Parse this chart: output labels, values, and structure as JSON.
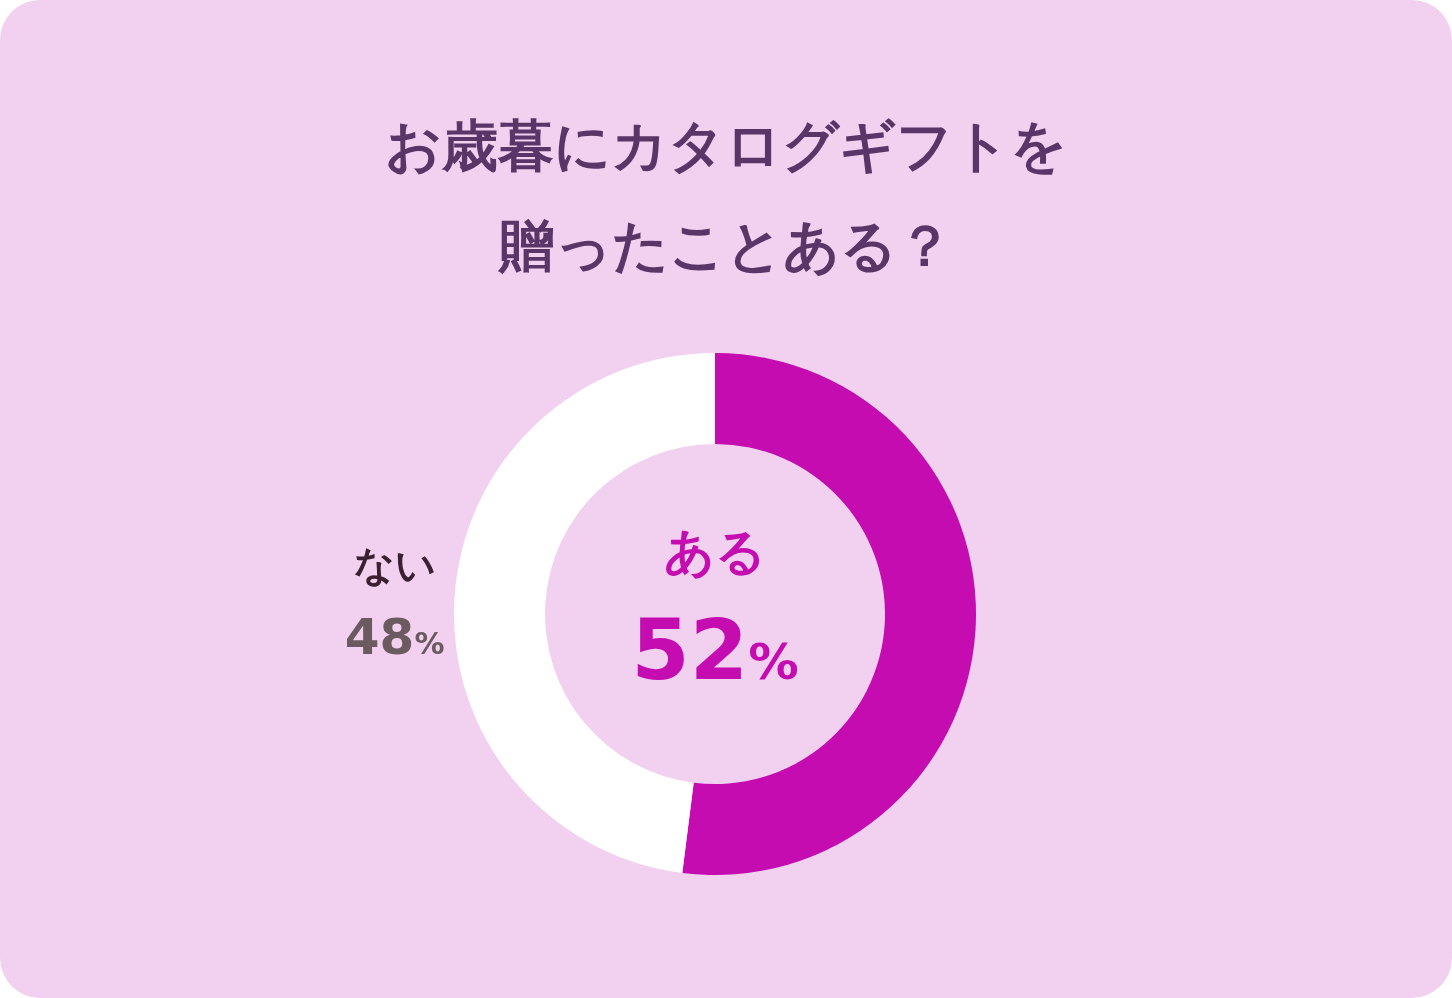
{
  "chart_data": {
    "type": "donut",
    "title": "お歳暮にカタログギフトを贈ったことある？",
    "categories": [
      "ある",
      "ない"
    ],
    "values": [
      52,
      48
    ],
    "colors": [
      "#c40cb0",
      "#ffffff"
    ],
    "value_labels": [
      "52%",
      "48%"
    ]
  }
}
